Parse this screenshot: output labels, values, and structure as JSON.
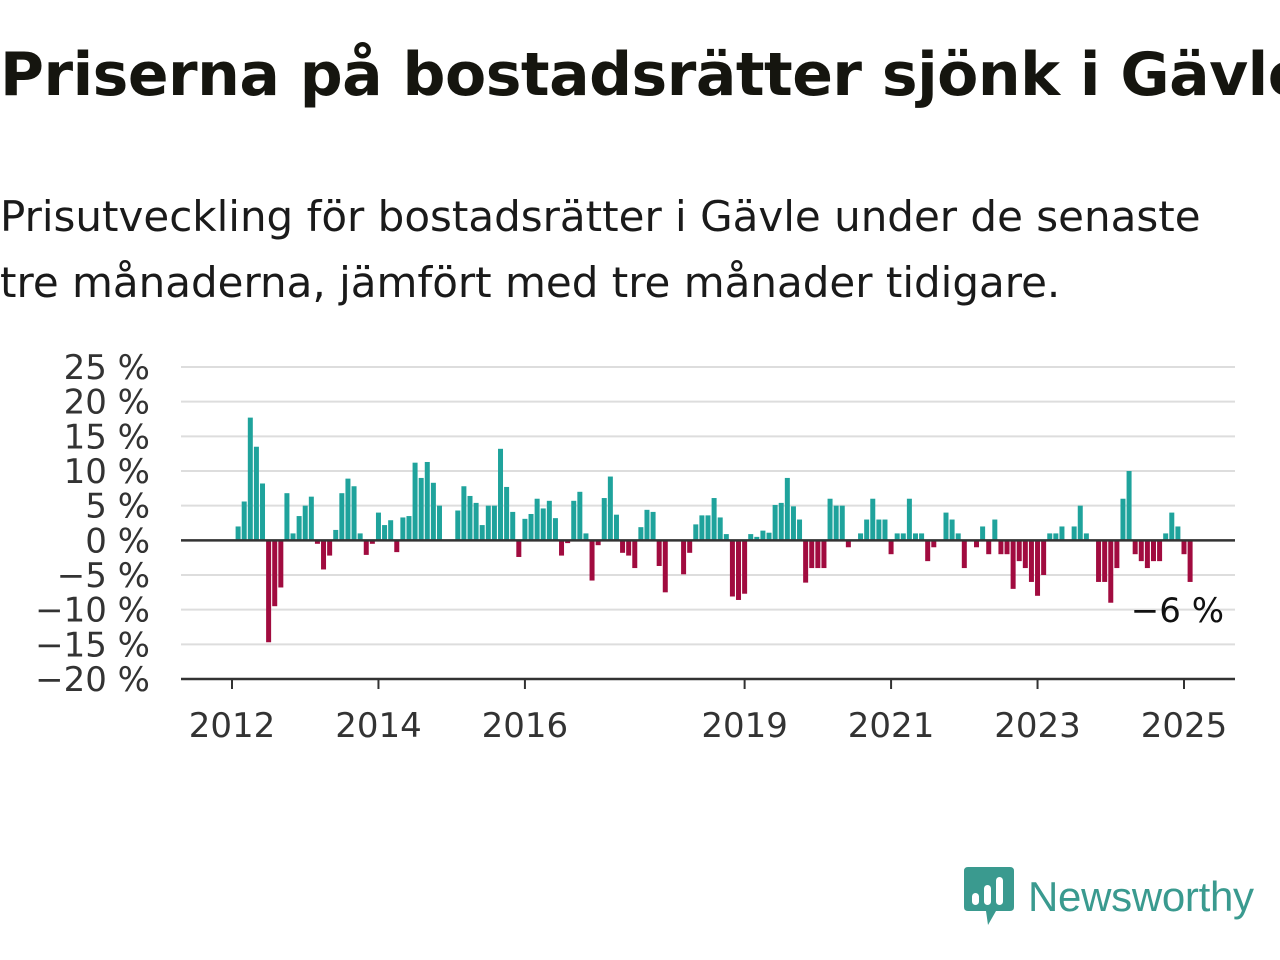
{
  "title": "Priserna på bostadsrätter sjönk i Gävle",
  "subtitle": "Prisutveckling för bostadsrätter i Gävle under de senaste tre månaderna, jämfört med tre månader tidigare.",
  "brand": "Newsworthy",
  "colors": {
    "positive": "#1fa39c",
    "negative": "#a10b3f",
    "grid": "#dddddd",
    "axis": "#333333",
    "brand": "#3a9a8f"
  },
  "chart_data": {
    "type": "bar",
    "ylim": [
      -20,
      25
    ],
    "y_ticks": [
      25,
      20,
      15,
      10,
      5,
      0,
      -5,
      -10,
      -15,
      -20
    ],
    "y_tick_labels": [
      "25 %",
      "20 %",
      "15 %",
      "10 %",
      "5 %",
      "0 %",
      "−5 %",
      "−10 %",
      "−15 %",
      "−20 %"
    ],
    "x_ticks": [
      2012,
      2014,
      2016,
      2019,
      2021,
      2023,
      2025
    ],
    "x_tick_labels": [
      "2012",
      "2014",
      "2016",
      "2019",
      "2021",
      "2023",
      "2025"
    ],
    "end_label": "−6 %",
    "series": [
      {
        "x": [
          "2012-02",
          "2012-03",
          "2012-04",
          "2012-05",
          "2012-06",
          "2012-07",
          "2012-08",
          "2012-09",
          "2012-10",
          "2012-11",
          "2012-12",
          "2013-01",
          "2013-02",
          "2013-03",
          "2013-04",
          "2013-05",
          "2013-06",
          "2013-07",
          "2013-08",
          "2013-09",
          "2013-10",
          "2013-11",
          "2013-12",
          "2014-01",
          "2014-02",
          "2014-03",
          "2014-04",
          "2014-05",
          "2014-06",
          "2014-07",
          "2014-08",
          "2014-09",
          "2014-10",
          "2014-11",
          "2015-02",
          "2015-03",
          "2015-04",
          "2015-05",
          "2015-06",
          "2015-07",
          "2015-08",
          "2015-09",
          "2015-10",
          "2015-11",
          "2015-12",
          "2016-01",
          "2016-02",
          "2016-03",
          "2016-04",
          "2016-05",
          "2016-06",
          "2016-07",
          "2016-08",
          "2016-09",
          "2016-10",
          "2016-11",
          "2016-12",
          "2017-01",
          "2017-02",
          "2017-03",
          "2017-04",
          "2017-05",
          "2017-06",
          "2017-07",
          "2017-08",
          "2017-09",
          "2017-10",
          "2017-11",
          "2017-12",
          "2018-03",
          "2018-04",
          "2018-05",
          "2018-06",
          "2018-07",
          "2018-08",
          "2018-09",
          "2018-10",
          "2018-11",
          "2018-12",
          "2019-01",
          "2019-02",
          "2019-03",
          "2019-04",
          "2019-05",
          "2019-06",
          "2019-07",
          "2019-08",
          "2019-09",
          "2019-10",
          "2019-11",
          "2019-12",
          "2020-01",
          "2020-02",
          "2020-03",
          "2020-04",
          "2020-05",
          "2020-06",
          "2020-07",
          "2020-08",
          "2020-09",
          "2020-10",
          "2020-11",
          "2020-12",
          "2021-01",
          "2021-02",
          "2021-03",
          "2021-04",
          "2021-05",
          "2021-06",
          "2021-07",
          "2021-08",
          "2021-09",
          "2021-10",
          "2021-11",
          "2021-12",
          "2022-01",
          "2022-02",
          "2022-03",
          "2022-04",
          "2022-05",
          "2022-06",
          "2022-07",
          "2022-08",
          "2022-09",
          "2022-10",
          "2022-11",
          "2022-12",
          "2023-01",
          "2023-02",
          "2023-03",
          "2023-04",
          "2023-05",
          "2023-06",
          "2023-07",
          "2023-08",
          "2023-09",
          "2023-10",
          "2023-11",
          "2023-12",
          "2024-01",
          "2024-02",
          "2024-03",
          "2024-04",
          "2024-05",
          "2024-06",
          "2024-07",
          "2024-08",
          "2024-09",
          "2024-10",
          "2024-11",
          "2024-12",
          "2025-01",
          "2025-02"
        ],
        "values": [
          2,
          5.6,
          17.7,
          13.5,
          8.2,
          -14.7,
          -9.5,
          -6.8,
          6.8,
          1,
          3.5,
          5,
          6.3,
          -0.5,
          -4.2,
          -2.2,
          1.5,
          6.8,
          8.9,
          7.8,
          1,
          -2.1,
          -0.5,
          4,
          2.2,
          2.9,
          -1.7,
          3.3,
          3.5,
          11.2,
          9,
          11.3,
          8.3,
          5,
          4.3,
          7.8,
          6.4,
          5.4,
          2.2,
          5,
          5,
          13.2,
          7.7,
          4.1,
          -2.4,
          3.1,
          3.8,
          6,
          4.6,
          5.7,
          3.2,
          -2.2,
          -0.4,
          5.7,
          7,
          1,
          -5.8,
          -0.7,
          6.1,
          9.2,
          3.7,
          -1.8,
          -2.2,
          -4,
          1.9,
          4.4,
          4.1,
          -3.7,
          -7.5,
          -4.9,
          -1.8,
          2.3,
          3.6,
          3.6,
          6.1,
          3.3,
          0.9,
          -8.1,
          -8.6,
          -7.7,
          0.9,
          0.5,
          1.4,
          1.1,
          5.1,
          5.4,
          9,
          4.9,
          3,
          -6.1,
          -4,
          -4,
          -4,
          6,
          5,
          5,
          -1,
          0,
          1,
          3,
          6,
          3,
          3,
          -2,
          1,
          1,
          6,
          1,
          1,
          -3,
          -1,
          0,
          4,
          3,
          1,
          -4,
          0,
          -1,
          2,
          -2,
          3,
          -2,
          -2,
          -7,
          -3,
          -4,
          -6,
          -8,
          -5,
          1,
          1,
          2,
          0,
          2,
          5,
          1,
          0,
          -6,
          -6,
          -9,
          -4,
          6,
          10,
          -2,
          -3,
          -4,
          -3,
          -3,
          1,
          4,
          2,
          -2,
          -6
        ]
      }
    ]
  }
}
